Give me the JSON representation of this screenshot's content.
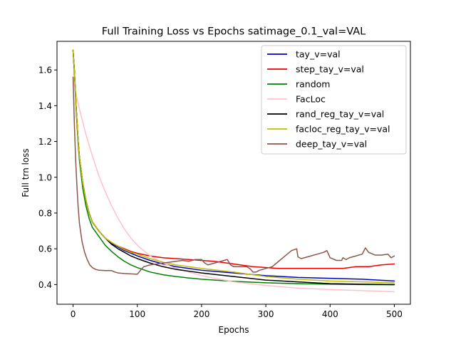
{
  "chart_data": {
    "type": "line",
    "title": "Full Training Loss vs Epochs satimage_0.1_val=VAL",
    "xlabel": "Epochs",
    "ylabel": "Full trn loss",
    "xlim": [
      -25,
      525
    ],
    "ylim": [
      0.29,
      1.76
    ],
    "x_ticks": [
      0,
      100,
      200,
      300,
      400,
      500
    ],
    "y_ticks": [
      0.4,
      0.6,
      0.8,
      1.0,
      1.2,
      1.4,
      1.6
    ],
    "x_tick_labels": [
      "0",
      "100",
      "200",
      "300",
      "400",
      "500"
    ],
    "y_tick_labels": [
      "0.4",
      "0.6",
      "0.8",
      "1.0",
      "1.2",
      "1.4",
      "1.6"
    ],
    "grid": false,
    "legend_position": "top-right",
    "series": [
      {
        "name": "tay_v=val",
        "color": "#0000cc",
        "x": [
          0,
          2,
          5,
          8,
          10,
          15,
          20,
          25,
          30,
          40,
          50,
          60,
          70,
          80,
          90,
          100,
          120,
          140,
          160,
          180,
          200,
          250,
          300,
          350,
          400,
          450,
          500
        ],
        "y": [
          1.71,
          1.6,
          1.38,
          1.2,
          1.11,
          0.97,
          0.87,
          0.8,
          0.75,
          0.7,
          0.66,
          0.63,
          0.61,
          0.59,
          0.575,
          0.56,
          0.535,
          0.515,
          0.5,
          0.49,
          0.48,
          0.465,
          0.45,
          0.44,
          0.435,
          0.43,
          0.42
        ]
      },
      {
        "name": "step_tay_v=val",
        "color": "#ee0000",
        "x": [
          0,
          2,
          5,
          8,
          10,
          15,
          20,
          25,
          30,
          40,
          50,
          60,
          70,
          80,
          90,
          100,
          120,
          140,
          160,
          180,
          200,
          220,
          240,
          260,
          280,
          300,
          320,
          350,
          400,
          420,
          440,
          460,
          480,
          500
        ],
        "y": [
          1.71,
          1.6,
          1.38,
          1.2,
          1.11,
          0.97,
          0.87,
          0.8,
          0.75,
          0.7,
          0.66,
          0.635,
          0.615,
          0.6,
          0.585,
          0.575,
          0.56,
          0.55,
          0.545,
          0.54,
          0.535,
          0.53,
          0.52,
          0.51,
          0.5,
          0.495,
          0.49,
          0.49,
          0.49,
          0.49,
          0.5,
          0.5,
          0.51,
          0.515
        ]
      },
      {
        "name": "random",
        "color": "#008000",
        "x": [
          0,
          2,
          5,
          8,
          10,
          15,
          20,
          25,
          30,
          40,
          50,
          60,
          70,
          80,
          90,
          100,
          120,
          140,
          160,
          180,
          200,
          250,
          300,
          350,
          400,
          450,
          500
        ],
        "y": [
          1.71,
          1.58,
          1.36,
          1.18,
          1.09,
          0.94,
          0.84,
          0.77,
          0.72,
          0.67,
          0.62,
          0.585,
          0.555,
          0.53,
          0.51,
          0.495,
          0.47,
          0.455,
          0.445,
          0.437,
          0.43,
          0.418,
          0.41,
          0.405,
          0.402,
          0.4,
          0.399
        ]
      },
      {
        "name": "FacLoc",
        "color": "#ffc0cb",
        "x": [
          0,
          5,
          10,
          20,
          30,
          40,
          50,
          60,
          70,
          80,
          90,
          100,
          120,
          140,
          160,
          180,
          200,
          250,
          300,
          350,
          400,
          450,
          500
        ],
        "y": [
          1.56,
          1.46,
          1.38,
          1.24,
          1.12,
          1.01,
          0.92,
          0.84,
          0.77,
          0.71,
          0.66,
          0.62,
          0.56,
          0.52,
          0.49,
          0.47,
          0.45,
          0.415,
          0.395,
          0.38,
          0.372,
          0.366,
          0.36
        ]
      },
      {
        "name": "rand_reg_tay_v=val",
        "color": "#000000",
        "x": [
          0,
          2,
          5,
          8,
          10,
          15,
          20,
          25,
          30,
          40,
          50,
          60,
          70,
          80,
          90,
          100,
          120,
          140,
          160,
          180,
          200,
          250,
          300,
          350,
          400,
          450,
          500
        ],
        "y": [
          1.71,
          1.6,
          1.38,
          1.2,
          1.11,
          0.97,
          0.87,
          0.8,
          0.75,
          0.7,
          0.66,
          0.625,
          0.6,
          0.58,
          0.56,
          0.545,
          0.52,
          0.5,
          0.485,
          0.475,
          0.465,
          0.445,
          0.425,
          0.415,
          0.405,
          0.402,
          0.4
        ]
      },
      {
        "name": "facloc_reg_tay_v=val",
        "color": "#bfbf00",
        "x": [
          0,
          2,
          5,
          8,
          10,
          15,
          20,
          25,
          30,
          40,
          50,
          60,
          70,
          80,
          90,
          100,
          120,
          140,
          160,
          180,
          200,
          250,
          300,
          350,
          400,
          450,
          500
        ],
        "y": [
          1.71,
          1.6,
          1.38,
          1.2,
          1.11,
          0.97,
          0.87,
          0.8,
          0.75,
          0.7,
          0.66,
          0.635,
          0.615,
          0.595,
          0.58,
          0.57,
          0.545,
          0.525,
          0.51,
          0.5,
          0.49,
          0.47,
          0.445,
          0.43,
          0.42,
          0.415,
          0.41
        ]
      },
      {
        "name": "deep_tay_v=val",
        "color": "#8c564b",
        "x": [
          0,
          2,
          4,
          6,
          8,
          10,
          14,
          18,
          22,
          26,
          30,
          35,
          40,
          50,
          60,
          65,
          70,
          80,
          90,
          100,
          105,
          110,
          120,
          130,
          140,
          150,
          160,
          170,
          180,
          190,
          200,
          205,
          210,
          220,
          230,
          240,
          245,
          250,
          260,
          270,
          275,
          280,
          285,
          290,
          300,
          310,
          320,
          330,
          340,
          348,
          350,
          355,
          360,
          370,
          380,
          390,
          395,
          400,
          410,
          418,
          420,
          425,
          430,
          440,
          450,
          455,
          460,
          470,
          480,
          490,
          495,
          500
        ],
        "y": [
          1.56,
          1.3,
          1.1,
          0.95,
          0.83,
          0.74,
          0.64,
          0.58,
          0.54,
          0.51,
          0.495,
          0.485,
          0.48,
          0.478,
          0.478,
          0.47,
          0.465,
          0.462,
          0.46,
          0.458,
          0.48,
          0.5,
          0.51,
          0.515,
          0.52,
          0.525,
          0.53,
          0.535,
          0.53,
          0.54,
          0.54,
          0.52,
          0.51,
          0.52,
          0.53,
          0.54,
          0.51,
          0.5,
          0.5,
          0.5,
          0.49,
          0.47,
          0.47,
          0.48,
          0.49,
          0.5,
          0.53,
          0.56,
          0.59,
          0.6,
          0.555,
          0.545,
          0.55,
          0.56,
          0.57,
          0.58,
          0.59,
          0.55,
          0.535,
          0.535,
          0.55,
          0.54,
          0.55,
          0.56,
          0.57,
          0.605,
          0.58,
          0.565,
          0.565,
          0.57,
          0.55,
          0.56
        ]
      }
    ]
  }
}
